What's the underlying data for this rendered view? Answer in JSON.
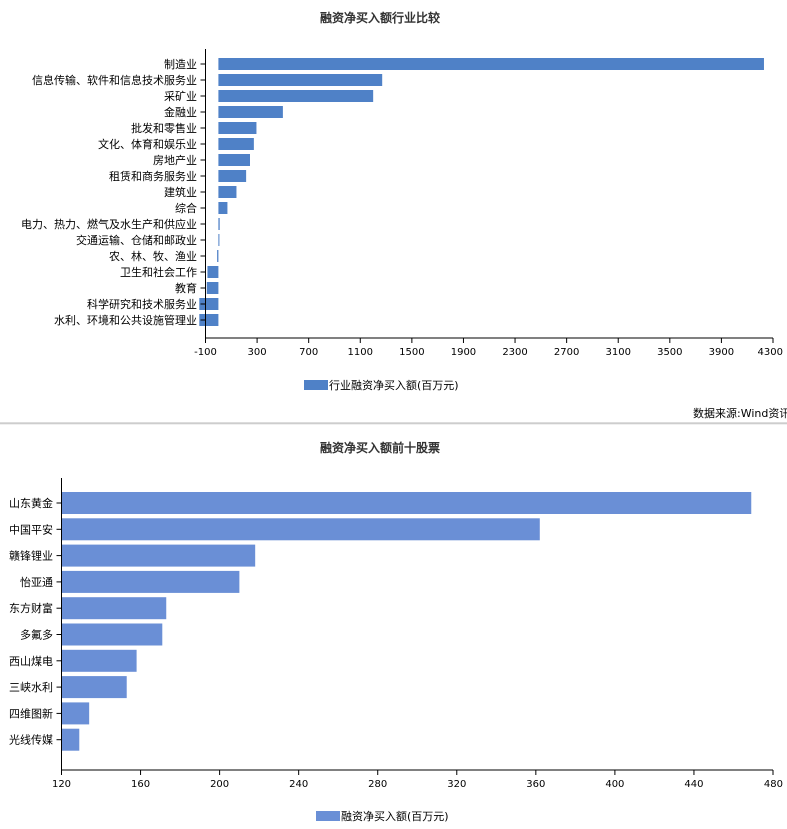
{
  "chart_data": [
    {
      "type": "bar",
      "orientation": "horizontal",
      "title": "融资净买入额行业比较",
      "categories": [
        "制造业",
        "信息传输、软件和信息技术服务业",
        "采矿业",
        "金融业",
        "批发和零售业",
        "文化、体育和娱乐业",
        "房地产业",
        "租赁和商务服务业",
        "建筑业",
        "综合",
        "电力、热力、燃气及水生产和供应业",
        "交通运输、仓储和邮政业",
        "农、林、牧、渔业",
        "卫生和社会工作",
        "教育",
        "科学研究和技术服务业",
        "水利、环境和公共设施管理业"
      ],
      "series": [
        {
          "name": "行业融资净买入额(百万元)",
          "values": [
            4230,
            1270,
            1200,
            500,
            295,
            275,
            245,
            215,
            140,
            70,
            10,
            5,
            -10,
            -85,
            -90,
            -148,
            -148
          ]
        }
      ],
      "xlim": [
        -100,
        4300
      ],
      "xticks": [
        "-100",
        "300",
        "700",
        "1100",
        "1500",
        "1900",
        "2300",
        "2700",
        "3100",
        "3500",
        "3900",
        "4300"
      ],
      "legend_position": "bottom",
      "grid": false,
      "color": "#4f81c7"
    },
    {
      "type": "bar",
      "orientation": "horizontal",
      "title": "融资净买入额前十股票",
      "categories": [
        "山东黄金",
        "中国平安",
        "赣锋锂业",
        "怡亚通",
        "东方财富",
        "多氟多",
        "西山煤电",
        "三峡水利",
        "四维图新",
        "光线传媒"
      ],
      "series": [
        {
          "name": "融资净买入额(百万元)",
          "values": [
            469,
            362,
            218,
            210,
            173,
            171,
            158,
            153,
            134,
            129
          ]
        }
      ],
      "xlim": [
        120,
        480
      ],
      "xticks": [
        "120",
        "160",
        "200",
        "240",
        "280",
        "320",
        "360",
        "400",
        "440",
        "480"
      ],
      "legend_position": "bottom",
      "grid": false,
      "color": "#6a8fd6"
    }
  ],
  "source_note": "数据来源:Wind资讯"
}
